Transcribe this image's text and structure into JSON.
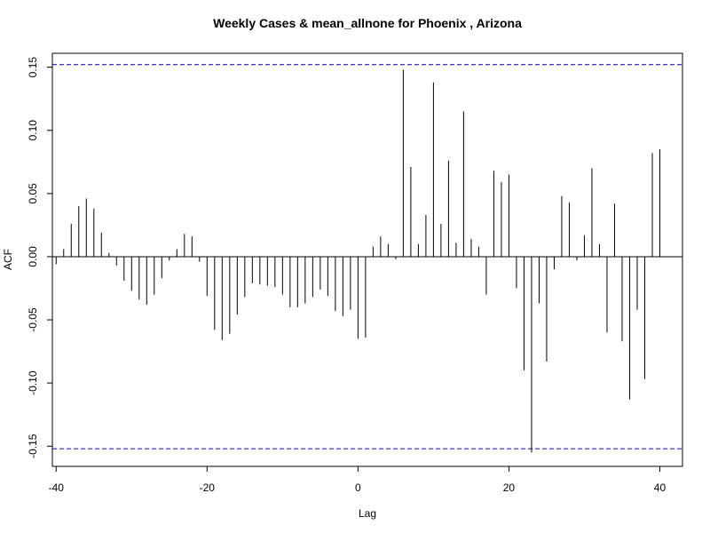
{
  "chart_data": {
    "type": "bar",
    "subtype": "acf-stem",
    "title": "Weekly Cases & mean_allnone for Phoenix , Arizona",
    "xlabel": "Lag",
    "ylabel": "ACF",
    "xlim": [
      -40.5,
      43
    ],
    "ylim": [
      -0.166,
      0.161
    ],
    "x_ticks": [
      -40,
      -20,
      0,
      20,
      40
    ],
    "y_ticks": [
      -0.15,
      -0.1,
      -0.05,
      0.0,
      0.05,
      0.1,
      0.15
    ],
    "y_tick_labels": [
      "-0.15",
      "-0.10",
      "-0.05",
      "0.00",
      "0.05",
      "0.10",
      "0.15"
    ],
    "confidence_bound": 0.152,
    "confidence_color": "#0000cc",
    "bar_color": "#000000",
    "lags": [
      -40,
      -39,
      -38,
      -37,
      -36,
      -35,
      -34,
      -33,
      -32,
      -31,
      -30,
      -29,
      -28,
      -27,
      -26,
      -25,
      -24,
      -23,
      -22,
      -21,
      -20,
      -19,
      -18,
      -17,
      -16,
      -15,
      -14,
      -13,
      -12,
      -11,
      -10,
      -9,
      -8,
      -7,
      -6,
      -5,
      -4,
      -3,
      -2,
      -1,
      0,
      1,
      2,
      3,
      4,
      5,
      6,
      7,
      8,
      9,
      10,
      11,
      12,
      13,
      14,
      15,
      16,
      17,
      18,
      19,
      20,
      21,
      22,
      23,
      24,
      25,
      26,
      27,
      28,
      29,
      30,
      31,
      32,
      33,
      34,
      35,
      36,
      37,
      38,
      39,
      40
    ],
    "values": [
      -0.006,
      0.006,
      0.026,
      0.04,
      0.046,
      0.038,
      0.019,
      0.003,
      -0.007,
      -0.019,
      -0.027,
      -0.034,
      -0.038,
      -0.03,
      -0.017,
      -0.003,
      0.006,
      0.018,
      0.016,
      -0.004,
      -0.031,
      -0.058,
      -0.066,
      -0.061,
      -0.046,
      -0.032,
      -0.021,
      -0.022,
      -0.023,
      -0.024,
      -0.03,
      -0.04,
      -0.04,
      -0.037,
      -0.032,
      -0.026,
      -0.031,
      -0.043,
      -0.047,
      -0.042,
      -0.065,
      -0.064,
      0.008,
      0.016,
      0.01,
      -0.002,
      0.148,
      0.071,
      0.01,
      0.033,
      0.138,
      0.026,
      0.076,
      0.011,
      0.115,
      0.014,
      0.008,
      -0.03,
      0.068,
      0.059,
      0.065,
      -0.025,
      -0.09,
      -0.155,
      -0.037,
      -0.083,
      -0.01,
      0.048,
      0.043,
      -0.003,
      0.017,
      0.07,
      0.01,
      -0.06,
      0.042,
      -0.067,
      -0.113,
      -0.042,
      -0.097,
      0.082,
      0.085
    ]
  }
}
